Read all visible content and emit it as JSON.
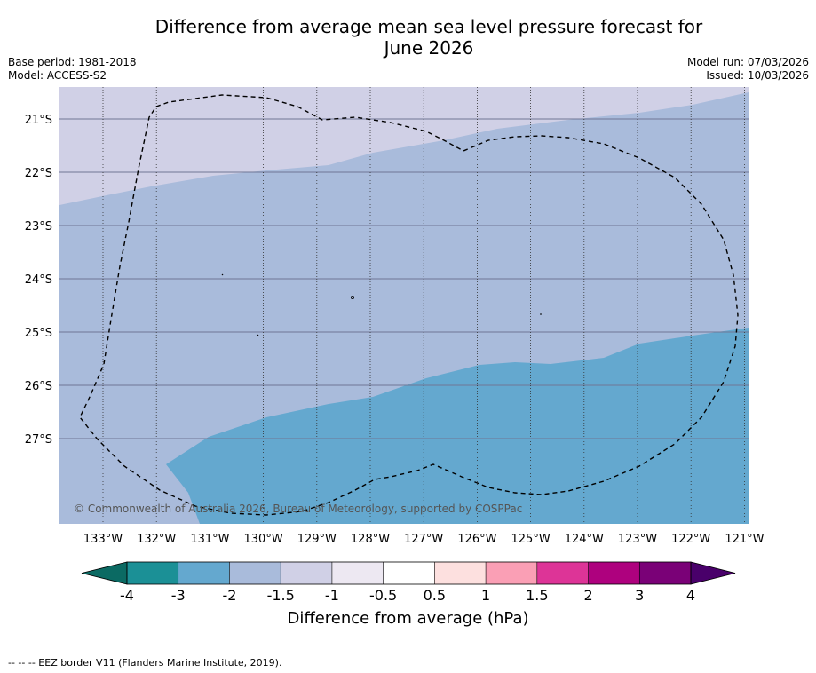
{
  "title_line1": "Difference from average mean sea level pressure forecast for",
  "title_line2": "June 2026",
  "meta": {
    "base_period": "Base period: 1981-2018",
    "model": "Model: ACCESS-S2",
    "model_run": "Model run: 07/03/2026",
    "issued": "Issued: 10/03/2026"
  },
  "map": {
    "lat_labels": [
      "21°S",
      "22°S",
      "23°S",
      "24°S",
      "25°S",
      "26°S",
      "27°S"
    ],
    "lon_labels": [
      "133°W",
      "132°W",
      "131°W",
      "130°W",
      "129°W",
      "128°W",
      "127°W",
      "126°W",
      "125°W",
      "124°W",
      "123°W",
      "122°W",
      "121°W"
    ],
    "copyright": "© Commonwealth of Australia 2026, Bureau of Meteorology, supported by COSPPac",
    "colors": {
      "band_-1.5_-1": "#d0d0e6",
      "band_-2_-1.5": "#a9bbdb",
      "band_-3_-2": "#64a8cf"
    }
  },
  "colorbar": {
    "ticks": [
      "-4",
      "-3",
      "-2",
      "-1.5",
      "-1",
      "-0.5",
      "0.5",
      "1",
      "1.5",
      "2",
      "3",
      "4"
    ],
    "colors": [
      "#1b9096",
      "#64a8cf",
      "#a9bbdb",
      "#d0d0e6",
      "#ede8f2",
      "#ffffff",
      "#fde0df",
      "#fa9fb5",
      "#dd3497",
      "#ae017e",
      "#7a0177"
    ],
    "under_color": "#0b6a63",
    "over_color": "#49006a",
    "label": "Difference from average (hPa)"
  },
  "footer": "-- -- -- EEZ border V11 (Flanders Marine Institute, 2019)."
}
